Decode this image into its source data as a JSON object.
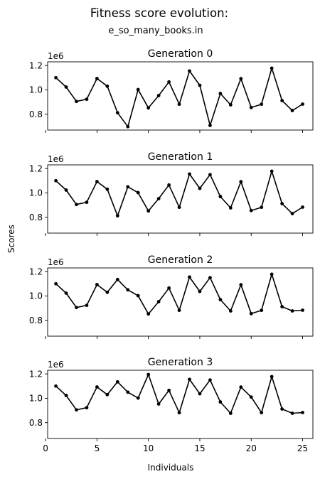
{
  "figure": {
    "title": "Fitness score evolution:",
    "subtitle": "e_so_many_books.in",
    "ylabel": "Scores",
    "xlabel": "Individuals"
  },
  "chart_data": [
    {
      "type": "line",
      "title": "Generation 0",
      "offset_text": "1e6",
      "x": [
        1,
        2,
        3,
        4,
        5,
        6,
        7,
        8,
        9,
        10,
        11,
        12,
        13,
        14,
        15,
        16,
        17,
        18,
        19,
        20,
        21,
        22,
        23,
        24,
        25
      ],
      "values": [
        1.1,
        1.023,
        0.905,
        0.923,
        1.093,
        1.03,
        0.812,
        0.698,
        1.002,
        0.852,
        0.953,
        1.065,
        0.882,
        1.155,
        1.037,
        0.708,
        0.97,
        0.877,
        1.092,
        0.855,
        0.882,
        1.178,
        0.912,
        0.83,
        0.883
      ],
      "ylim": [
        0.67,
        1.23
      ],
      "yticks": [
        0.8,
        1.0,
        1.2
      ],
      "ytick_labels": [
        "0.8",
        "1.0",
        "1.2"
      ],
      "xlim": [
        0.2,
        26.0
      ],
      "xticks": [
        0,
        5,
        10,
        15,
        20,
        25
      ],
      "xtick_labels": [],
      "color": "#000000"
    },
    {
      "type": "line",
      "title": "Generation 1",
      "offset_text": "1e6",
      "x": [
        1,
        2,
        3,
        4,
        5,
        6,
        7,
        8,
        9,
        10,
        11,
        12,
        13,
        14,
        15,
        16,
        17,
        18,
        19,
        20,
        21,
        22,
        23,
        24,
        25
      ],
      "values": [
        1.1,
        1.023,
        0.905,
        0.923,
        1.093,
        1.03,
        0.812,
        1.05,
        1.002,
        0.852,
        0.953,
        1.065,
        0.882,
        1.155,
        1.037,
        1.15,
        0.97,
        0.877,
        1.092,
        0.855,
        0.882,
        1.178,
        0.912,
        0.83,
        0.883
      ],
      "ylim": [
        0.67,
        1.23
      ],
      "yticks": [
        0.8,
        1.0,
        1.2
      ],
      "ytick_labels": [
        "0.8",
        "1.0",
        "1.2"
      ],
      "xlim": [
        0.2,
        26.0
      ],
      "xticks": [
        0,
        5,
        10,
        15,
        20,
        25
      ],
      "xtick_labels": [],
      "color": "#000000"
    },
    {
      "type": "line",
      "title": "Generation 2",
      "offset_text": "1e6",
      "x": [
        1,
        2,
        3,
        4,
        5,
        6,
        7,
        8,
        9,
        10,
        11,
        12,
        13,
        14,
        15,
        16,
        17,
        18,
        19,
        20,
        21,
        22,
        23,
        24,
        25
      ],
      "values": [
        1.1,
        1.023,
        0.905,
        0.923,
        1.093,
        1.03,
        1.135,
        1.05,
        1.002,
        0.852,
        0.953,
        1.065,
        0.882,
        1.155,
        1.037,
        1.15,
        0.97,
        0.877,
        1.092,
        0.855,
        0.882,
        1.178,
        0.912,
        0.877,
        0.883
      ],
      "ylim": [
        0.67,
        1.23
      ],
      "yticks": [
        0.8,
        1.0,
        1.2
      ],
      "ytick_labels": [
        "0.8",
        "1.0",
        "1.2"
      ],
      "xlim": [
        0.2,
        26.0
      ],
      "xticks": [
        0,
        5,
        10,
        15,
        20,
        25
      ],
      "xtick_labels": [],
      "color": "#000000"
    },
    {
      "type": "line",
      "title": "Generation 3",
      "offset_text": "1e6",
      "x": [
        1,
        2,
        3,
        4,
        5,
        6,
        7,
        8,
        9,
        10,
        11,
        12,
        13,
        14,
        15,
        16,
        17,
        18,
        19,
        20,
        21,
        22,
        23,
        24,
        25
      ],
      "values": [
        1.1,
        1.023,
        0.905,
        0.923,
        1.093,
        1.03,
        1.135,
        1.05,
        1.002,
        1.195,
        0.953,
        1.065,
        0.882,
        1.155,
        1.037,
        1.15,
        0.97,
        0.877,
        1.092,
        1.01,
        0.882,
        1.178,
        0.912,
        0.877,
        0.883
      ],
      "ylim": [
        0.67,
        1.23
      ],
      "yticks": [
        0.8,
        1.0,
        1.2
      ],
      "ytick_labels": [
        "0.8",
        "1.0",
        "1.2"
      ],
      "xlim": [
        0.2,
        26.0
      ],
      "xticks": [
        0,
        5,
        10,
        15,
        20,
        25
      ],
      "xtick_labels": [
        "0",
        "5",
        "10",
        "15",
        "20",
        "25"
      ],
      "color": "#000000"
    }
  ]
}
